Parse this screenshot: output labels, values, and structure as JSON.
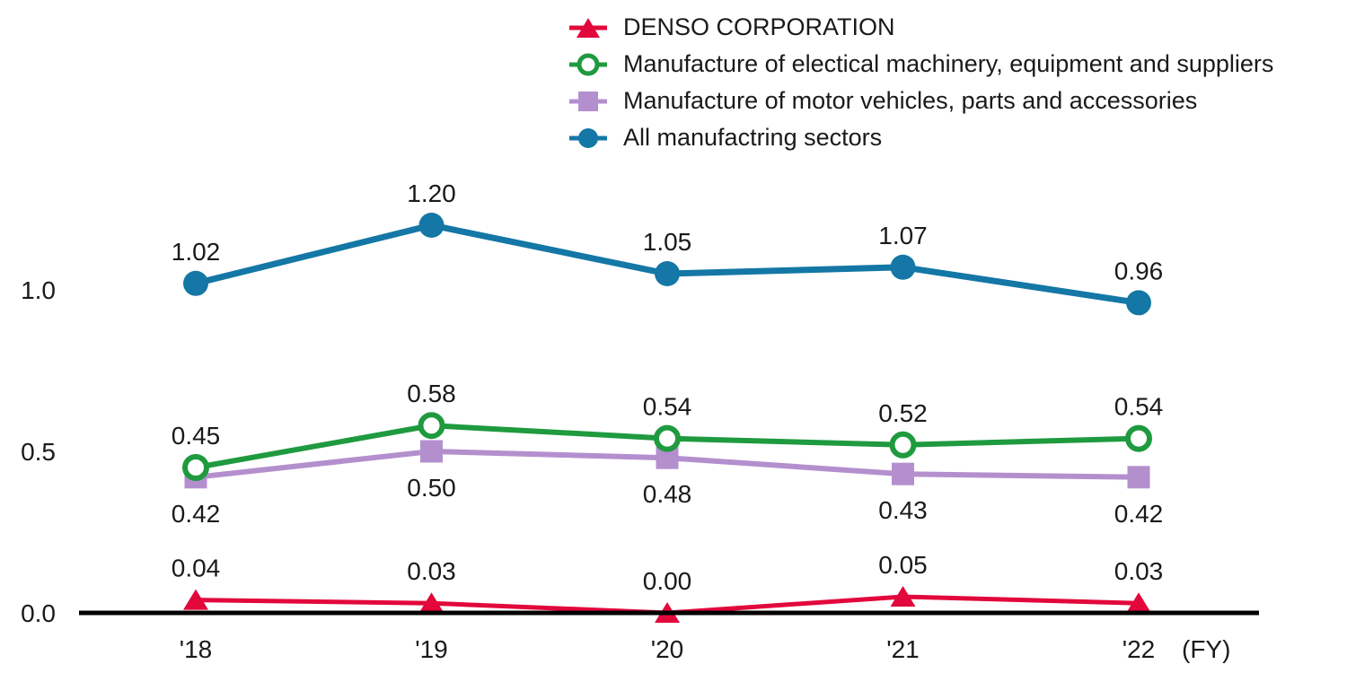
{
  "chart_data": {
    "type": "line",
    "title": "",
    "x": [
      "'18",
      "'19",
      "'20",
      "'21",
      "'22"
    ],
    "x_axis_suffix": "(FY)",
    "xlabel": "",
    "ylabel": "",
    "ylim": [
      0,
      1.3
    ],
    "yticks": [
      {
        "value": 0.0,
        "label": "0.0"
      },
      {
        "value": 0.5,
        "label": "0.5"
      },
      {
        "value": 1.0,
        "label": "1.0"
      }
    ],
    "grid": false,
    "legend_position": "top-center",
    "axis_color": "#000000",
    "text_color": "#1a1a1a",
    "series": [
      {
        "name": "DENSO CORPORATION",
        "marker": "triangle",
        "color": "#e2083c",
        "values": [
          0.04,
          0.03,
          0.0,
          0.05,
          0.03
        ],
        "labels": [
          "0.04",
          "0.03",
          "0.00",
          "0.05",
          "0.03"
        ],
        "label_position": "above"
      },
      {
        "name": "Manufacture of electical machinery, equipment and suppliers",
        "marker": "open-circle",
        "color": "#1f9a3f",
        "values": [
          0.45,
          0.58,
          0.54,
          0.52,
          0.54
        ],
        "labels": [
          "0.45",
          "0.58",
          "0.54",
          "0.52",
          "0.54"
        ],
        "label_position": "above"
      },
      {
        "name": "Manufacture of motor vehicles, parts and accessories",
        "marker": "square",
        "color": "#b48fce",
        "values": [
          0.42,
          0.5,
          0.48,
          0.43,
          0.42
        ],
        "labels": [
          "0.42",
          "0.50",
          "0.48",
          "0.43",
          "0.42"
        ],
        "label_position": "below"
      },
      {
        "name": "All manufactring sectors",
        "marker": "circle",
        "color": "#1477a5",
        "values": [
          1.02,
          1.2,
          1.05,
          1.07,
          0.96
        ],
        "labels": [
          "1.02",
          "1.20",
          "1.05",
          "1.07",
          "0.96"
        ],
        "label_position": "above"
      }
    ]
  }
}
